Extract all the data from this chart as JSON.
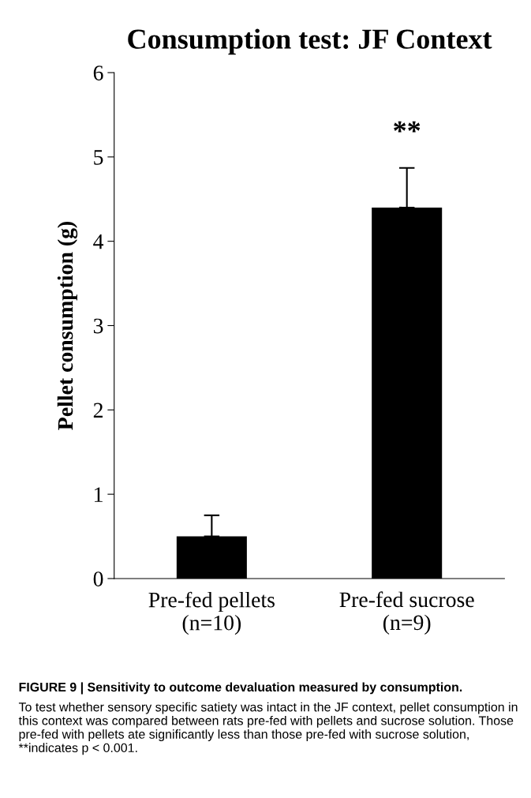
{
  "chart_data": {
    "type": "bar",
    "title": "Consumption test: JF Context",
    "ylabel": "Pellet consumption (g)",
    "categories": [
      "Pre-fed pellets\n(n=10)",
      "Pre-fed sucrose\n(n=9)"
    ],
    "values": [
      0.5,
      4.4
    ],
    "color": "#000000",
    "errors": [
      [
        0.5,
        0.75
      ],
      [
        4.4,
        4.87
      ]
    ],
    "ylim": [
      0,
      6
    ],
    "yticks": [
      0,
      1,
      2,
      3,
      4,
      5,
      6
    ],
    "grid": false,
    "annotations": [
      "**",
      "FIGURE 9 | Sensitivity to outcome devaluation measured by consumption.",
      "To test whether sensory specific satiety was intact in the JF context, pellet consumption in this context was compared between rats pre-fed with pellets and sucrose solution. Those pre-fed with pellets ate significantly less than those pre-fed with sucrose solution, **indicates p < 0.001."
    ]
  }
}
